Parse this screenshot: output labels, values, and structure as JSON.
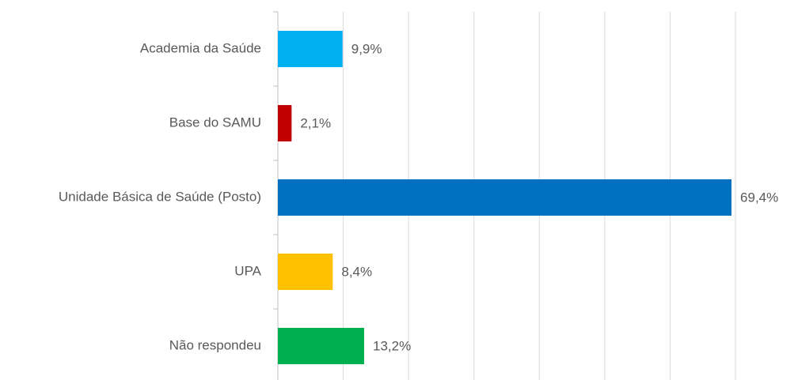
{
  "chart_data": {
    "type": "barh",
    "categories": [
      "Academia da Saúde",
      "Base do SAMU",
      "Unidade Básica de Saúde (Posto)",
      "UPA",
      "Não respondeu"
    ],
    "values": [
      9.9,
      2.1,
      69.4,
      8.4,
      13.2
    ],
    "value_labels": [
      "9,9%",
      "2,1%",
      "69,4%",
      "8,4%",
      "13,2%"
    ],
    "colors": [
      "#00b0f0",
      "#c00000",
      "#0070c0",
      "#ffc000",
      "#00b050"
    ],
    "xlim": [
      0,
      70
    ],
    "xticks": [
      0,
      10,
      20,
      30,
      40,
      50,
      60,
      70
    ],
    "grid": true
  }
}
